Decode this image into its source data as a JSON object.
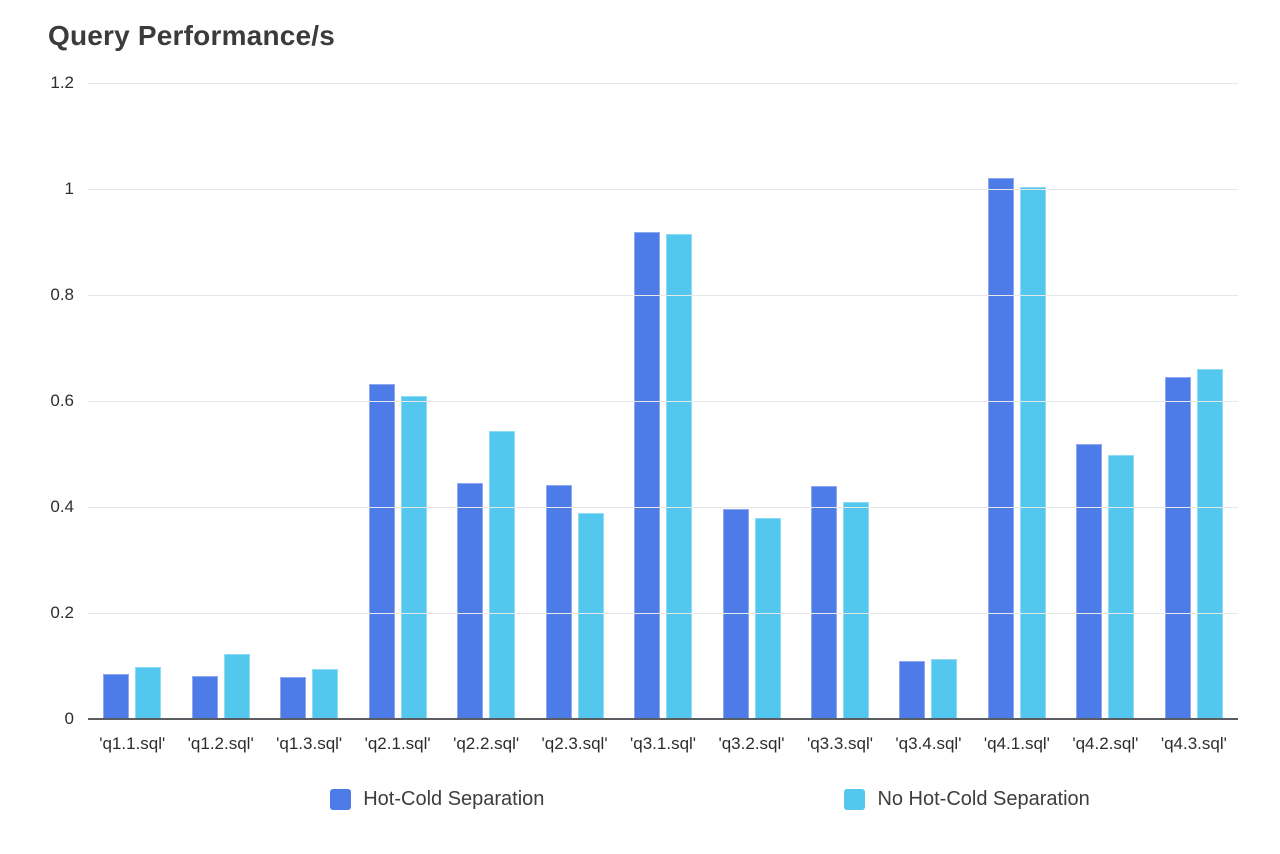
{
  "title": "Query Performance/s",
  "legend": {
    "items": [
      {
        "label": "Hot-Cold Separation",
        "color": "#4d7ce8"
      },
      {
        "label": "No Hot-Cold Separation",
        "color": "#54c7ef"
      }
    ]
  },
  "colors": {
    "background": "#ffffff",
    "grid": "#e7e7e7",
    "axis": "#595d61",
    "title_text": "#3b3b3b",
    "tick_text": "#2f2f2f",
    "series_hot_cold": "#4d7ce8",
    "series_no_hot_cold": "#54c7ef"
  },
  "chart_data": {
    "type": "bar",
    "title": "Query Performance/s",
    "xlabel": "",
    "ylabel": "",
    "ylim": [
      0,
      1.2
    ],
    "grid": true,
    "legend_position": "bottom",
    "categories": [
      "'q1.1.sql'",
      "'q1.2.sql'",
      "'q1.3.sql'",
      "'q2.1.sql'",
      "'q2.2.sql'",
      "'q2.3.sql'",
      "'q3.1.sql'",
      "'q3.2.sql'",
      "'q3.3.sql'",
      "'q3.4.sql'",
      "'q4.1.sql'",
      "'q4.2.sql'",
      "'q4.3.sql'"
    ],
    "yticks": [
      {
        "label": "1.2",
        "value": 1.2
      },
      {
        "label": "1",
        "value": 1.0
      },
      {
        "label": "0.8",
        "value": 0.8
      },
      {
        "label": "0.6",
        "value": 0.6
      },
      {
        "label": "0.4",
        "value": 0.4
      },
      {
        "label": "0.2",
        "value": 0.2
      },
      {
        "label": "0",
        "value": 0
      }
    ],
    "series": [
      {
        "name": "Hot-Cold Separation",
        "color": "#4d7ce8",
        "border": "#8fa8ef",
        "values": [
          0.085,
          0.082,
          0.079,
          0.633,
          0.445,
          0.441,
          0.918,
          0.397,
          0.439,
          0.11,
          1.02,
          0.519,
          0.645
        ]
      },
      {
        "name": "No Hot-Cold Separation",
        "color": "#54c7ef",
        "border": "#8edbf4",
        "values": [
          0.098,
          0.123,
          0.094,
          0.609,
          0.544,
          0.388,
          0.915,
          0.379,
          0.409,
          0.113,
          1.004,
          0.499,
          0.66
        ]
      }
    ]
  }
}
